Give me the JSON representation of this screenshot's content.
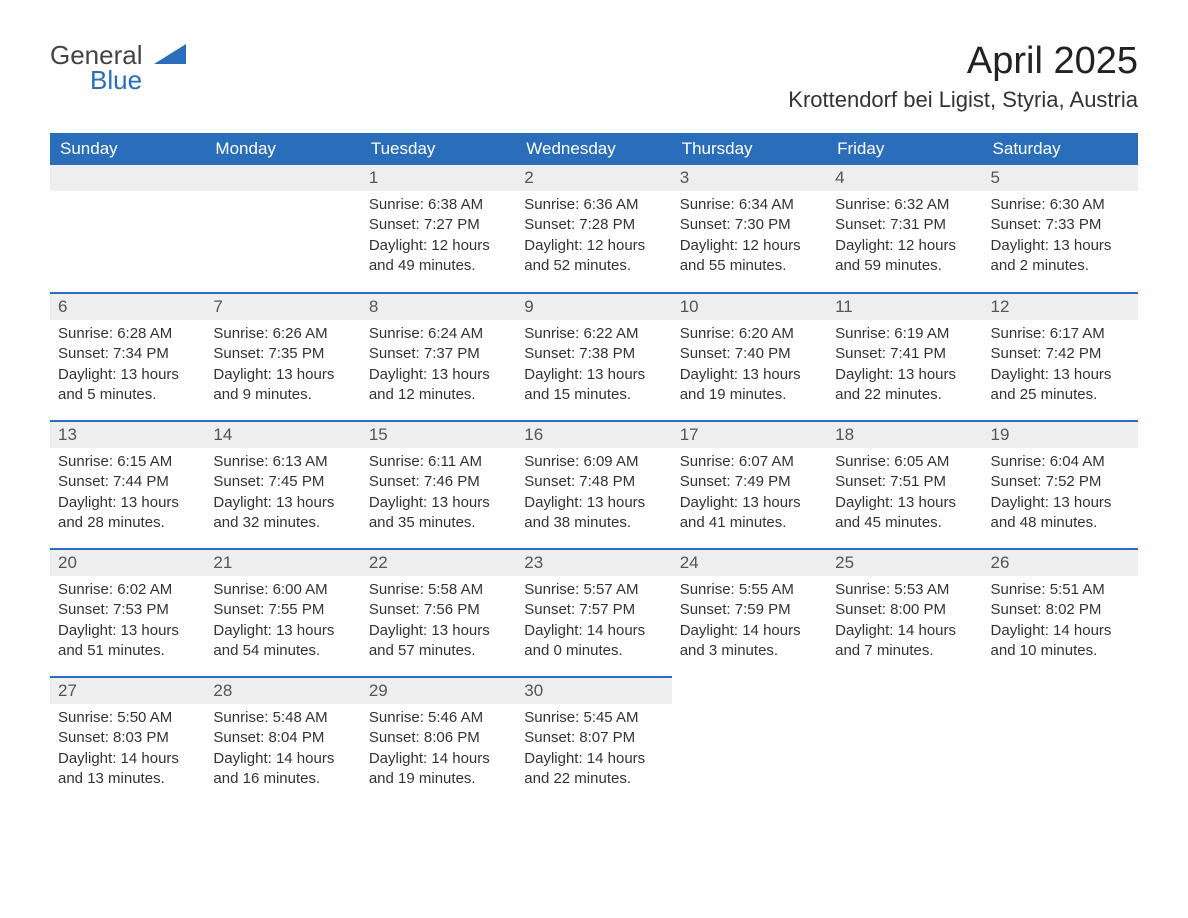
{
  "logo": {
    "general": "General",
    "blue": "Blue"
  },
  "title": {
    "month_year": "April 2025",
    "location": "Krottendorf bei Ligist, Styria, Austria"
  },
  "colors": {
    "header_blue": "#2a6ebb",
    "gray_band": "#eeeeee",
    "text": "#333333",
    "white": "#ffffff"
  },
  "day_names": [
    "Sunday",
    "Monday",
    "Tuesday",
    "Wednesday",
    "Thursday",
    "Friday",
    "Saturday"
  ],
  "first_day_of_week_index": 2,
  "days": [
    {
      "n": 1,
      "sunrise": "6:38 AM",
      "sunset": "7:27 PM",
      "daylight_h": 12,
      "daylight_m": 49
    },
    {
      "n": 2,
      "sunrise": "6:36 AM",
      "sunset": "7:28 PM",
      "daylight_h": 12,
      "daylight_m": 52
    },
    {
      "n": 3,
      "sunrise": "6:34 AM",
      "sunset": "7:30 PM",
      "daylight_h": 12,
      "daylight_m": 55
    },
    {
      "n": 4,
      "sunrise": "6:32 AM",
      "sunset": "7:31 PM",
      "daylight_h": 12,
      "daylight_m": 59
    },
    {
      "n": 5,
      "sunrise": "6:30 AM",
      "sunset": "7:33 PM",
      "daylight_h": 13,
      "daylight_m": 2
    },
    {
      "n": 6,
      "sunrise": "6:28 AM",
      "sunset": "7:34 PM",
      "daylight_h": 13,
      "daylight_m": 5
    },
    {
      "n": 7,
      "sunrise": "6:26 AM",
      "sunset": "7:35 PM",
      "daylight_h": 13,
      "daylight_m": 9
    },
    {
      "n": 8,
      "sunrise": "6:24 AM",
      "sunset": "7:37 PM",
      "daylight_h": 13,
      "daylight_m": 12
    },
    {
      "n": 9,
      "sunrise": "6:22 AM",
      "sunset": "7:38 PM",
      "daylight_h": 13,
      "daylight_m": 15
    },
    {
      "n": 10,
      "sunrise": "6:20 AM",
      "sunset": "7:40 PM",
      "daylight_h": 13,
      "daylight_m": 19
    },
    {
      "n": 11,
      "sunrise": "6:19 AM",
      "sunset": "7:41 PM",
      "daylight_h": 13,
      "daylight_m": 22
    },
    {
      "n": 12,
      "sunrise": "6:17 AM",
      "sunset": "7:42 PM",
      "daylight_h": 13,
      "daylight_m": 25
    },
    {
      "n": 13,
      "sunrise": "6:15 AM",
      "sunset": "7:44 PM",
      "daylight_h": 13,
      "daylight_m": 28
    },
    {
      "n": 14,
      "sunrise": "6:13 AM",
      "sunset": "7:45 PM",
      "daylight_h": 13,
      "daylight_m": 32
    },
    {
      "n": 15,
      "sunrise": "6:11 AM",
      "sunset": "7:46 PM",
      "daylight_h": 13,
      "daylight_m": 35
    },
    {
      "n": 16,
      "sunrise": "6:09 AM",
      "sunset": "7:48 PM",
      "daylight_h": 13,
      "daylight_m": 38
    },
    {
      "n": 17,
      "sunrise": "6:07 AM",
      "sunset": "7:49 PM",
      "daylight_h": 13,
      "daylight_m": 41
    },
    {
      "n": 18,
      "sunrise": "6:05 AM",
      "sunset": "7:51 PM",
      "daylight_h": 13,
      "daylight_m": 45
    },
    {
      "n": 19,
      "sunrise": "6:04 AM",
      "sunset": "7:52 PM",
      "daylight_h": 13,
      "daylight_m": 48
    },
    {
      "n": 20,
      "sunrise": "6:02 AM",
      "sunset": "7:53 PM",
      "daylight_h": 13,
      "daylight_m": 51
    },
    {
      "n": 21,
      "sunrise": "6:00 AM",
      "sunset": "7:55 PM",
      "daylight_h": 13,
      "daylight_m": 54
    },
    {
      "n": 22,
      "sunrise": "5:58 AM",
      "sunset": "7:56 PM",
      "daylight_h": 13,
      "daylight_m": 57
    },
    {
      "n": 23,
      "sunrise": "5:57 AM",
      "sunset": "7:57 PM",
      "daylight_h": 14,
      "daylight_m": 0
    },
    {
      "n": 24,
      "sunrise": "5:55 AM",
      "sunset": "7:59 PM",
      "daylight_h": 14,
      "daylight_m": 3
    },
    {
      "n": 25,
      "sunrise": "5:53 AM",
      "sunset": "8:00 PM",
      "daylight_h": 14,
      "daylight_m": 7
    },
    {
      "n": 26,
      "sunrise": "5:51 AM",
      "sunset": "8:02 PM",
      "daylight_h": 14,
      "daylight_m": 10
    },
    {
      "n": 27,
      "sunrise": "5:50 AM",
      "sunset": "8:03 PM",
      "daylight_h": 14,
      "daylight_m": 13
    },
    {
      "n": 28,
      "sunrise": "5:48 AM",
      "sunset": "8:04 PM",
      "daylight_h": 14,
      "daylight_m": 16
    },
    {
      "n": 29,
      "sunrise": "5:46 AM",
      "sunset": "8:06 PM",
      "daylight_h": 14,
      "daylight_m": 19
    },
    {
      "n": 30,
      "sunrise": "5:45 AM",
      "sunset": "8:07 PM",
      "daylight_h": 14,
      "daylight_m": 22
    }
  ],
  "labels": {
    "sunrise_prefix": "Sunrise: ",
    "sunset_prefix": "Sunset: ",
    "daylight_prefix": "Daylight: ",
    "hours_word": " hours",
    "and_word": "and ",
    "minutes_word": " minutes."
  }
}
